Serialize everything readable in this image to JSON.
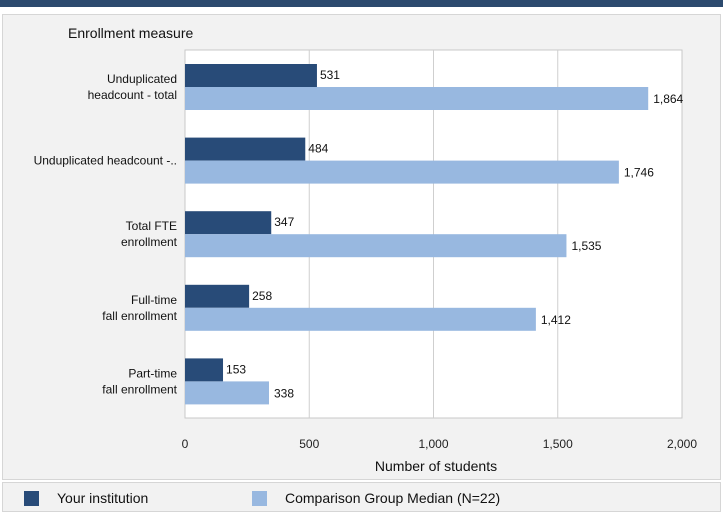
{
  "chart_data": {
    "type": "bar",
    "orientation": "horizontal",
    "category_axis_title": "Enrollment measure",
    "xlabel": "Number of students",
    "xlim": [
      0,
      2000
    ],
    "xticks": [
      0,
      500,
      1000,
      1500,
      2000
    ],
    "xtick_labels": [
      "0",
      "500",
      "1,000",
      "1,500",
      "2,000"
    ],
    "grid": true,
    "legend_position": "bottom",
    "categories": [
      "Unduplicated headcount - total",
      "Unduplicated headcount -..",
      "Total FTE enrollment",
      "Full-time fall enrollment",
      "Part-time fall enrollment"
    ],
    "category_label_lines": [
      [
        "Unduplicated",
        "headcount - total"
      ],
      [
        "Unduplicated headcount -.."
      ],
      [
        "Total FTE",
        "enrollment"
      ],
      [
        "Full-time",
        "fall enrollment"
      ],
      [
        "Part-time",
        "fall enrollment"
      ]
    ],
    "series": [
      {
        "name": "Your institution",
        "color": "#284b78",
        "values": [
          531,
          484,
          347,
          258,
          153
        ],
        "value_labels": [
          "531",
          "484",
          "347",
          "258",
          "153"
        ]
      },
      {
        "name": "Comparison Group Median (N=22)",
        "color": "#98b8e0",
        "values": [
          1864,
          1746,
          1535,
          1412,
          338
        ],
        "value_labels": [
          "1,864",
          "1,746",
          "1,535",
          "1,412",
          "338"
        ]
      }
    ]
  },
  "legend": {
    "items": [
      {
        "label": "Your institution",
        "color": "#284b78"
      },
      {
        "label": "Comparison Group Median (N=22)",
        "color": "#98b8e0"
      }
    ]
  }
}
